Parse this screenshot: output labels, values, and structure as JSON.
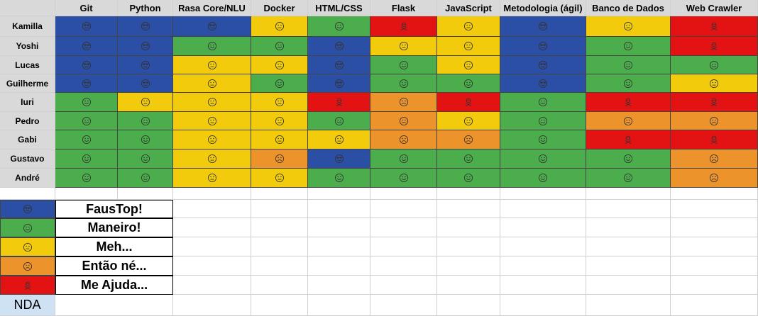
{
  "skills": [
    "Git",
    "Python",
    "Rasa Core/NLU",
    "Docker",
    "HTML/CSS",
    "Flask",
    "JavaScript",
    "Metodologia (ágil)",
    "Banco de Dados",
    "Web Crawler"
  ],
  "people": [
    {
      "name": "Kamilla",
      "ratings": [
        "faustop",
        "faustop",
        "faustop",
        "meh",
        "maneiro",
        "me_ajuda",
        "meh",
        "faustop",
        "meh",
        "me_ajuda"
      ]
    },
    {
      "name": "Yoshi",
      "ratings": [
        "faustop",
        "faustop",
        "maneiro",
        "maneiro",
        "faustop",
        "meh",
        "meh",
        "faustop",
        "maneiro",
        "me_ajuda"
      ]
    },
    {
      "name": "Lucas",
      "ratings": [
        "faustop",
        "faustop",
        "meh",
        "meh",
        "faustop",
        "maneiro",
        "meh",
        "faustop",
        "maneiro",
        "maneiro"
      ]
    },
    {
      "name": "Guilherme",
      "ratings": [
        "faustop",
        "faustop",
        "meh",
        "maneiro",
        "faustop",
        "maneiro",
        "maneiro",
        "faustop",
        "maneiro",
        "meh"
      ]
    },
    {
      "name": "Iuri",
      "ratings": [
        "maneiro",
        "meh",
        "meh",
        "meh",
        "me_ajuda",
        "entao_ne",
        "me_ajuda",
        "maneiro",
        "me_ajuda",
        "me_ajuda"
      ]
    },
    {
      "name": "Pedro",
      "ratings": [
        "maneiro",
        "maneiro",
        "meh",
        "meh",
        "maneiro",
        "entao_ne",
        "meh",
        "maneiro",
        "entao_ne",
        "entao_ne"
      ]
    },
    {
      "name": "Gabi",
      "ratings": [
        "maneiro",
        "maneiro",
        "meh",
        "meh",
        "meh",
        "entao_ne",
        "entao_ne",
        "maneiro",
        "me_ajuda",
        "me_ajuda"
      ]
    },
    {
      "name": "Gustavo",
      "ratings": [
        "maneiro",
        "maneiro",
        "meh",
        "entao_ne",
        "faustop",
        "maneiro",
        "maneiro",
        "maneiro",
        "maneiro",
        "entao_ne"
      ]
    },
    {
      "name": "André",
      "ratings": [
        "maneiro",
        "maneiro",
        "meh",
        "meh",
        "maneiro",
        "maneiro",
        "maneiro",
        "maneiro",
        "maneiro",
        "entao_ne"
      ]
    }
  ],
  "levels": {
    "faustop": {
      "label": "FausTop!",
      "color": "#2b4fa5",
      "icon": "sunglasses-face-icon"
    },
    "maneiro": {
      "label": "Maneiro!",
      "color": "#4cad4c",
      "icon": "smiley-face-icon"
    },
    "meh": {
      "label": "Meh...",
      "color": "#f2cc0c",
      "icon": "neutral-face-icon"
    },
    "entao_ne": {
      "label": "Então né...",
      "color": "#ec932c",
      "icon": "worried-face-icon"
    },
    "me_ajuda": {
      "label": "Me Ajuda...",
      "color": "#e31313",
      "icon": "skull-crossbones-icon"
    }
  },
  "legend_order": [
    "faustop",
    "maneiro",
    "meh",
    "entao_ne",
    "me_ajuda"
  ],
  "nda_label": "NDA",
  "colors": {
    "header_bg": "#d9d9d9",
    "nda_bg": "#cfe2f3",
    "grid_line": "#d0d0d0"
  }
}
